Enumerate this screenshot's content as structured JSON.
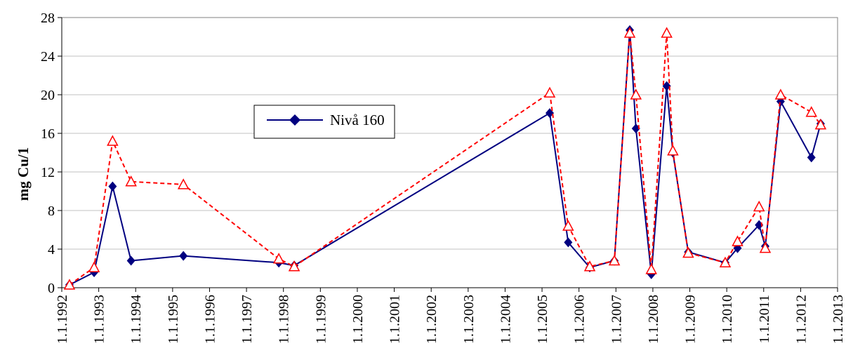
{
  "chart_data": {
    "type": "line",
    "ylabel": "mg Cu/1",
    "xlabel": "",
    "ylim": [
      0,
      28
    ],
    "yticks": [
      "0",
      "4",
      "8",
      "12",
      "16",
      "20",
      "24",
      "28"
    ],
    "xlim_years": [
      1992,
      2013
    ],
    "xticks": [
      "1.1.1992",
      "1.1.1993",
      "1.1.1994",
      "1.1.1995",
      "1.1.1996",
      "1.1.1997",
      "1.1.1998",
      "1.1.1999",
      "1.1.2000",
      "1.1.2001",
      "1.1.2002",
      "1.1.2003",
      "1.1.2004",
      "1.1.2005",
      "1.1.2006",
      "1.1.2007",
      "1.1.2008",
      "1.1.2009",
      "1.1.2010",
      "1.1.2011",
      "1.1.2012",
      "1.1.2013"
    ],
    "grid": "horizontal",
    "legend": "center-left",
    "colors": {
      "series1": "#000080",
      "series2": "#ff0000"
    },
    "series": [
      {
        "name": "Nivå 160",
        "marker": "diamond",
        "line": "solid",
        "x": [
          "1992-03",
          "1992-11",
          "1993-05",
          "1993-11",
          "1995-04",
          "1997-11",
          "1998-04",
          "2005-03",
          "2005-09",
          "2006-04",
          "2006-12",
          "2007-05",
          "2007-07",
          "2007-12",
          "2008-05",
          "2008-07",
          "2008-12",
          "2009-12",
          "2010-04",
          "2010-11",
          "2011-01",
          "2011-06",
          "2012-04",
          "2012-07"
        ],
        "values": [
          0.3,
          1.6,
          10.5,
          2.8,
          3.3,
          2.6,
          2.3,
          18.1,
          4.7,
          2.1,
          2.8,
          26.7,
          16.5,
          1.4,
          20.9,
          14.0,
          3.7,
          2.6,
          4.1,
          6.5,
          4.3,
          19.3,
          13.5,
          17.0
        ]
      },
      {
        "name": "",
        "marker": "triangle",
        "line": "dashed",
        "x": [
          "1992-03",
          "1992-11",
          "1993-05",
          "1993-11",
          "1995-04",
          "1997-11",
          "1998-04",
          "2005-03",
          "2005-09",
          "2006-04",
          "2006-12",
          "2007-05",
          "2007-07",
          "2007-12",
          "2008-05",
          "2008-07",
          "2008-12",
          "2009-12",
          "2010-04",
          "2010-11",
          "2011-01",
          "2011-06",
          "2012-04",
          "2012-07"
        ],
        "values": [
          0.3,
          2.1,
          15.2,
          11.0,
          10.7,
          3.0,
          2.2,
          20.2,
          6.4,
          2.2,
          2.8,
          26.4,
          20.0,
          1.9,
          26.4,
          14.2,
          3.6,
          2.6,
          4.8,
          8.4,
          4.1,
          20.0,
          18.2,
          16.9
        ]
      }
    ]
  }
}
